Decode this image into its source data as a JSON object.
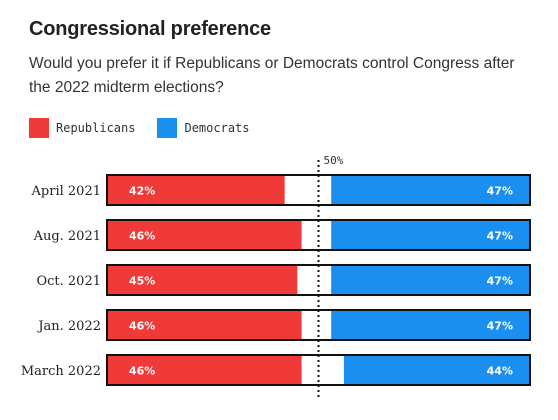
{
  "chart_data": {
    "type": "bar",
    "stacked": true,
    "title": "Congressional preference",
    "subtitle": "Would you prefer it if Republicans or Democrats control Congress after the 2022 midterm elections?",
    "categories": [
      "April 2021",
      "Aug. 2021",
      "Oct. 2021",
      "Jan. 2022",
      "March 2022"
    ],
    "series": [
      {
        "name": "Republicans",
        "values": [
          42,
          46,
          45,
          46,
          46
        ],
        "labels": [
          "42%",
          "46%",
          "45%",
          "46%",
          "46%"
        ]
      },
      {
        "name": "Democrats",
        "values": [
          47,
          47,
          47,
          47,
          44
        ],
        "labels": [
          "47%",
          "47%",
          "47%",
          "47%",
          "44%"
        ]
      }
    ],
    "xlim": [
      0,
      100
    ],
    "reference_line": {
      "value": 50,
      "label": "50%"
    },
    "legend_position": "top-left",
    "colors": {
      "republicans": "#f03a3a",
      "democrats": "#1a8ff0",
      "undecided": "#ffffff",
      "outline": "#111111"
    }
  }
}
